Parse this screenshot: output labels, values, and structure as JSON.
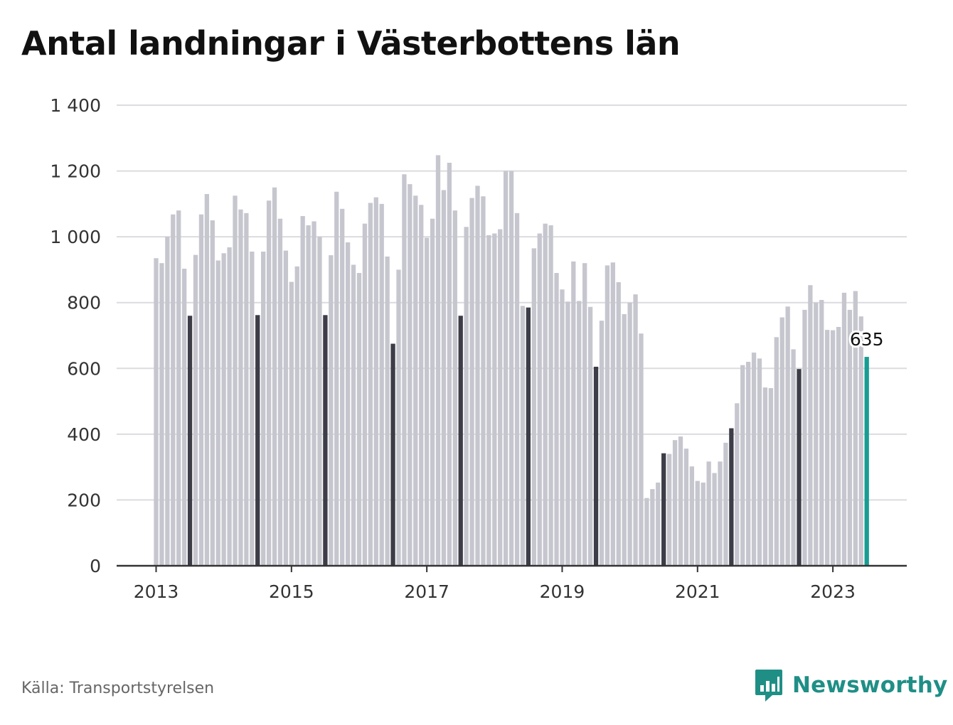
{
  "title": "Antal landningar i Västerbottens län",
  "source": "Källa: Transportstyrelsen",
  "brand": "Newsworthy",
  "colors": {
    "regular": "#c6c6cf",
    "july": "#3d3d48",
    "latest": "#179c93",
    "brand": "#1f8f86"
  },
  "chart_data": {
    "type": "bar",
    "title": "Antal landningar i Västerbottens län",
    "xlabel": "",
    "ylabel": "",
    "ylim": [
      0,
      1400
    ],
    "yticks": [
      0,
      200,
      400,
      600,
      800,
      1000,
      1200,
      1400
    ],
    "ytick_labels": [
      "0",
      "200",
      "400",
      "600",
      "800",
      "1 000",
      "1 200",
      "1 400"
    ],
    "xtick_labels": [
      "2013",
      "2015",
      "2017",
      "2019",
      "2021",
      "2023"
    ],
    "grid": true,
    "start": "2013-01",
    "end": "2023-07",
    "highlight": "July values shown in dark; latest month highlighted",
    "latest_label": "635",
    "series": [
      {
        "values": [
          935,
          920,
          1000,
          1068,
          1080,
          903,
          760,
          945,
          1068,
          1130,
          1050,
          928,
          950,
          968,
          1125,
          1083,
          1072,
          955,
          762,
          955,
          1110,
          1150,
          1055,
          958,
          863,
          910,
          1063,
          1035,
          1047,
          1000,
          762,
          944,
          1137,
          1085,
          983,
          915,
          890,
          1040,
          1103,
          1120,
          1100,
          940,
          675,
          900,
          1190,
          1160,
          1125,
          1097,
          997,
          1055,
          1248,
          1142,
          1225,
          1080,
          760,
          1030,
          1118,
          1155,
          1123,
          1005,
          1010,
          1023,
          1200,
          1200,
          1072,
          790,
          785,
          965,
          1010,
          1040,
          1035,
          890,
          840,
          803,
          925,
          805,
          920,
          787,
          605,
          745,
          913,
          922,
          862,
          765,
          800,
          825,
          706,
          206,
          233,
          253,
          342,
          340,
          382,
          393,
          356,
          302,
          258,
          253,
          317,
          282,
          317,
          374,
          418,
          494,
          610,
          620,
          648,
          630,
          542,
          540,
          695,
          755,
          788,
          658,
          598,
          778,
          853,
          800,
          808,
          717,
          716,
          726,
          830,
          778,
          835,
          758,
          635
        ]
      }
    ]
  }
}
